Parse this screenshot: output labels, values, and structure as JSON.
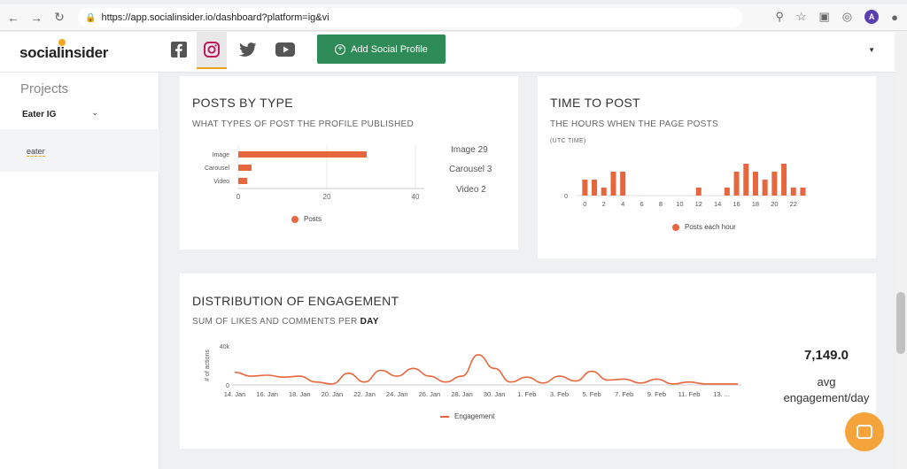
{
  "browser": {
    "url": "https://app.socialinsider.io/dashboard?platform=ig&vi",
    "avatar_letter": "A"
  },
  "header": {
    "logo": "socialinsider",
    "networks": [
      "facebook-icon",
      "instagram-icon",
      "twitter-icon",
      "youtube-icon"
    ],
    "active_network": "instagram-icon",
    "add_profile_label": "Add Social Profile",
    "add_profile_color": "#2e8b57"
  },
  "sidebar": {
    "title": "Projects",
    "project": "Eater IG",
    "profile": "eater"
  },
  "posts_by_type": {
    "title": "POSTS BY TYPE",
    "subtitle": "WHAT TYPES OF POST THE PROFILE PUBLISHED",
    "side_labels": [
      "Image 29",
      "Carousel 3",
      "Video 2"
    ]
  },
  "time_to_post": {
    "title": "TIME TO POST",
    "subtitle": "THE HOURS WHEN THE PAGE POSTS",
    "note": "(UTC TIME)"
  },
  "engagement": {
    "title": "DISTRIBUTION OF ENGAGEMENT",
    "subtitle_prefix": "SUM OF LIKES AND COMMENTS PER",
    "subtitle_strong": "DAY",
    "avg_value": "7,149.0",
    "avg_label_1": "avg",
    "avg_label_2": "engagement/day"
  },
  "chart_data": [
    {
      "type": "bar",
      "orientation": "horizontal",
      "categories": [
        "Image",
        "Carousel",
        "Video"
      ],
      "series": [
        {
          "name": "Posts",
          "values": [
            29,
            3,
            2
          ]
        }
      ],
      "xticks": [
        "0",
        "20",
        "40"
      ],
      "xlim": [
        0,
        40
      ],
      "legend": "bottom",
      "color": "#e8663d"
    },
    {
      "type": "bar",
      "categories": [
        0,
        1,
        2,
        3,
        4,
        5,
        6,
        7,
        8,
        9,
        10,
        11,
        12,
        13,
        14,
        15,
        16,
        17,
        18,
        19,
        20,
        21,
        22,
        23
      ],
      "series": [
        {
          "name": "Posts each hour",
          "values": [
            2,
            2,
            1,
            3,
            3,
            0,
            0,
            0,
            0,
            0,
            0,
            0,
            1,
            0,
            0,
            1,
            3,
            4,
            3,
            2,
            3,
            4,
            1,
            1
          ]
        }
      ],
      "xticks": [
        "0",
        "2",
        "4",
        "6",
        "8",
        "10",
        "12",
        "14",
        "16",
        "18",
        "20",
        "22"
      ],
      "yticks": [
        "0"
      ],
      "legend": "bottom",
      "color": "#e8663d"
    },
    {
      "type": "line",
      "x": [
        "14. Jan",
        "15. Jan",
        "16. Jan",
        "17. Jan",
        "18. Jan",
        "19. Jan",
        "20. Jan",
        "21. Jan",
        "22. Jan",
        "23. Jan",
        "24. Jan",
        "25. Jan",
        "26. Jan",
        "27. Jan",
        "28. Jan",
        "29. Jan",
        "30. Jan",
        "31. Jan",
        "1. Feb",
        "2. Feb",
        "3. Feb",
        "4. Feb",
        "5. Feb",
        "6. Feb",
        "7. Feb",
        "8. Feb",
        "9. Feb",
        "10. Feb",
        "11. Feb",
        "12. Feb",
        "13. Feb",
        "14. Feb"
      ],
      "xticks": [
        "14. Jan",
        "16. Jan",
        "18. Jan",
        "20. Jan",
        "22. Jan",
        "24. Jan",
        "26. Jan",
        "28. Jan",
        "30. Jan",
        "1. Feb",
        "3. Feb",
        "5. Feb",
        "7. Feb",
        "9. Feb",
        "11. Feb",
        "13. ..."
      ],
      "series": [
        {
          "name": "Engagement",
          "values": [
            13000,
            9000,
            10000,
            8000,
            9000,
            3000,
            1000,
            12000,
            3000,
            15000,
            9000,
            17000,
            9000,
            3000,
            9000,
            31000,
            17000,
            3000,
            8000,
            2000,
            9000,
            4000,
            14000,
            5000,
            6000,
            2000,
            6000,
            1000,
            3000,
            1000,
            1000,
            1000
          ]
        }
      ],
      "ylabel": "# of actions",
      "yticks": [
        "0",
        "40k"
      ],
      "ylim": [
        0,
        40000
      ],
      "legend": "bottom",
      "color": "#e8663d"
    }
  ]
}
